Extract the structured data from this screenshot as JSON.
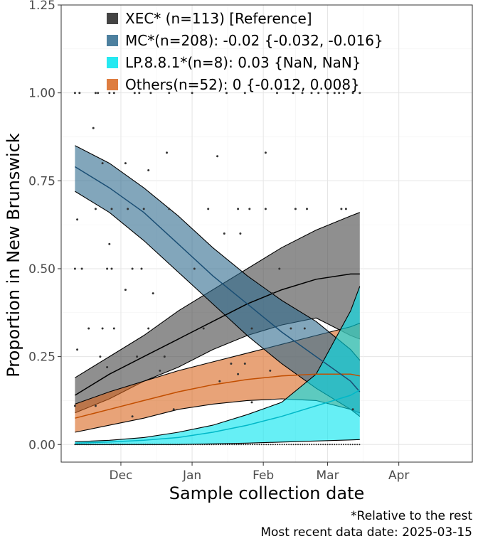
{
  "chart_data": {
    "type": "line",
    "title": "",
    "xlabel": "Sample collection date",
    "ylabel": "Proportion in New Brunswick",
    "xlim": [
      "2024-11-05",
      "2025-05-03"
    ],
    "ylim": [
      -0.05,
      1.25
    ],
    "grid": true,
    "legend_position": "top-left",
    "x_ticks": [
      {
        "date": "2024-12-01",
        "label": "Dec"
      },
      {
        "date": "2025-01-01",
        "label": "Jan"
      },
      {
        "date": "2025-02-01",
        "label": "Feb"
      },
      {
        "date": "2025-03-01",
        "label": "Mar"
      },
      {
        "date": "2025-04-01",
        "label": "Apr"
      }
    ],
    "y_ticks": [
      {
        "value": 0,
        "label": "0.00"
      },
      {
        "value": 0.25,
        "label": "0.25"
      },
      {
        "value": 0.5,
        "label": "0.50"
      },
      {
        "value": 0.75,
        "label": "0.75"
      },
      {
        "value": 1.0,
        "label": "1.00"
      },
      {
        "value": 1.25,
        "label": "1.25"
      }
    ],
    "x_dates": [
      "2024-11-11",
      "2024-11-26",
      "2024-12-11",
      "2024-12-26",
      "2025-01-10",
      "2025-01-25",
      "2025-02-09",
      "2025-02-24",
      "2025-03-11",
      "2025-03-15"
    ],
    "series": [
      {
        "name": "XEC* (n=113)  [Reference]",
        "color": "#444444",
        "line_color": "#000000",
        "fit": [
          0.14,
          0.2,
          0.25,
          0.3,
          0.35,
          0.4,
          0.44,
          0.47,
          0.485,
          0.485
        ],
        "lower": [
          0.09,
          0.13,
          0.18,
          0.22,
          0.27,
          0.31,
          0.34,
          0.36,
          0.31,
          0.3
        ],
        "upper": [
          0.19,
          0.25,
          0.31,
          0.38,
          0.44,
          0.5,
          0.56,
          0.61,
          0.65,
          0.66
        ]
      },
      {
        "name": "MC*(n=208): -0.02 {-0.032, -0.016}",
        "color": "#2e6a8e",
        "line_color": "#1a4e74",
        "fit": [
          0.79,
          0.73,
          0.66,
          0.57,
          0.48,
          0.4,
          0.32,
          0.25,
          0.18,
          0.15
        ],
        "lower": [
          0.72,
          0.66,
          0.58,
          0.49,
          0.4,
          0.31,
          0.23,
          0.16,
          0.1,
          0.08
        ],
        "upper": [
          0.85,
          0.8,
          0.73,
          0.65,
          0.56,
          0.48,
          0.41,
          0.35,
          0.27,
          0.24
        ]
      },
      {
        "name": "LP.8.8.1*(n=8): 0.03 {NaN, NaN}",
        "color": "#00e5ee",
        "line_color": "#00b8c8",
        "fit": [
          0.004,
          0.007,
          0.012,
          0.02,
          0.035,
          0.055,
          0.08,
          0.11,
          0.14,
          0.155
        ],
        "lower": [
          0.0,
          0.0,
          0.0,
          0.0,
          0.002,
          0.004,
          0.007,
          0.01,
          0.013,
          0.014
        ],
        "upper": [
          0.008,
          0.012,
          0.02,
          0.035,
          0.055,
          0.085,
          0.12,
          0.2,
          0.38,
          0.45
        ]
      },
      {
        "name": "Others(n=52): 0 {-0.012, 0.008}",
        "color": "#d8661e",
        "line_color": "#c24e00",
        "fit": [
          0.075,
          0.1,
          0.125,
          0.15,
          0.17,
          0.185,
          0.195,
          0.2,
          0.2,
          0.195
        ],
        "lower": [
          0.035,
          0.055,
          0.075,
          0.1,
          0.115,
          0.125,
          0.13,
          0.125,
          0.1,
          0.09
        ],
        "upper": [
          0.115,
          0.15,
          0.18,
          0.21,
          0.235,
          0.26,
          0.285,
          0.31,
          0.335,
          0.345
        ]
      }
    ],
    "observations": [
      {
        "x": "2024-11-11",
        "y": 1.0
      },
      {
        "x": "2024-11-13",
        "y": 1.0
      },
      {
        "x": "2024-11-20",
        "y": 1.0
      },
      {
        "x": "2024-11-21",
        "y": 1.0
      },
      {
        "x": "2024-11-26",
        "y": 1.0
      },
      {
        "x": "2024-11-28",
        "y": 1.0
      },
      {
        "x": "2024-12-07",
        "y": 1.0
      },
      {
        "x": "2024-12-09",
        "y": 1.0
      },
      {
        "x": "2024-12-14",
        "y": 1.0
      },
      {
        "x": "2024-12-22",
        "y": 1.0
      },
      {
        "x": "2025-01-01",
        "y": 1.0
      },
      {
        "x": "2025-01-16",
        "y": 1.0
      },
      {
        "x": "2025-01-24",
        "y": 1.0
      },
      {
        "x": "2025-02-07",
        "y": 1.0
      },
      {
        "x": "2025-02-14",
        "y": 1.0
      },
      {
        "x": "2025-02-18",
        "y": 1.0
      },
      {
        "x": "2025-02-22",
        "y": 1.0
      },
      {
        "x": "2025-02-25",
        "y": 1.0
      },
      {
        "x": "2025-03-01",
        "y": 1.0
      },
      {
        "x": "2025-03-04",
        "y": 1.0
      },
      {
        "x": "2025-03-06",
        "y": 1.0
      },
      {
        "x": "2025-03-08",
        "y": 1.0
      },
      {
        "x": "2025-03-12",
        "y": 1.0
      },
      {
        "x": "2025-03-15",
        "y": 1.0
      },
      {
        "x": "2024-11-19",
        "y": 0.9
      },
      {
        "x": "2024-12-21",
        "y": 0.83
      },
      {
        "x": "2025-01-12",
        "y": 0.82
      },
      {
        "x": "2025-02-02",
        "y": 0.83
      },
      {
        "x": "2024-11-23",
        "y": 0.8
      },
      {
        "x": "2024-12-03",
        "y": 0.8
      },
      {
        "x": "2024-12-13",
        "y": 0.78
      },
      {
        "x": "2024-11-12",
        "y": 0.64
      },
      {
        "x": "2024-11-20",
        "y": 0.67
      },
      {
        "x": "2024-11-27",
        "y": 0.67
      },
      {
        "x": "2024-12-04",
        "y": 0.67
      },
      {
        "x": "2024-12-11",
        "y": 0.67
      },
      {
        "x": "2024-12-22",
        "y": 0.67
      },
      {
        "x": "2025-01-08",
        "y": 0.67
      },
      {
        "x": "2025-01-21",
        "y": 0.67
      },
      {
        "x": "2025-01-26",
        "y": 0.67
      },
      {
        "x": "2025-02-02",
        "y": 0.67
      },
      {
        "x": "2025-02-15",
        "y": 0.67
      },
      {
        "x": "2025-02-20",
        "y": 0.67
      },
      {
        "x": "2025-03-07",
        "y": 0.67
      },
      {
        "x": "2025-03-09",
        "y": 0.67
      },
      {
        "x": "2024-11-26",
        "y": 0.57
      },
      {
        "x": "2025-01-15",
        "y": 0.6
      },
      {
        "x": "2025-01-22",
        "y": 0.6
      },
      {
        "x": "2024-11-11",
        "y": 0.5
      },
      {
        "x": "2024-11-14",
        "y": 0.5
      },
      {
        "x": "2024-11-25",
        "y": 0.5
      },
      {
        "x": "2024-11-27",
        "y": 0.5
      },
      {
        "x": "2024-12-06",
        "y": 0.5
      },
      {
        "x": "2024-12-10",
        "y": 0.5
      },
      {
        "x": "2025-01-02",
        "y": 0.5
      },
      {
        "x": "2025-02-08",
        "y": 0.5
      },
      {
        "x": "2024-12-03",
        "y": 0.44
      },
      {
        "x": "2024-12-15",
        "y": 0.43
      },
      {
        "x": "2025-02-05",
        "y": 0.43
      },
      {
        "x": "2024-11-17",
        "y": 0.33
      },
      {
        "x": "2024-11-23",
        "y": 0.33
      },
      {
        "x": "2024-11-28",
        "y": 0.33
      },
      {
        "x": "2024-12-13",
        "y": 0.33
      },
      {
        "x": "2025-01-06",
        "y": 0.33
      },
      {
        "x": "2025-01-27",
        "y": 0.33
      },
      {
        "x": "2025-02-13",
        "y": 0.33
      },
      {
        "x": "2025-02-19",
        "y": 0.33
      },
      {
        "x": "2024-11-12",
        "y": 0.27
      },
      {
        "x": "2024-11-22",
        "y": 0.25
      },
      {
        "x": "2024-12-08",
        "y": 0.25
      },
      {
        "x": "2024-12-20",
        "y": 0.25
      },
      {
        "x": "2025-01-21",
        "y": 0.2
      },
      {
        "x": "2025-01-13",
        "y": 0.18
      },
      {
        "x": "2024-11-25",
        "y": 0.22
      },
      {
        "x": "2024-12-18",
        "y": 0.21
      },
      {
        "x": "2025-01-18",
        "y": 0.23
      },
      {
        "x": "2025-01-24",
        "y": 0.23
      },
      {
        "x": "2025-02-04",
        "y": 0.21
      },
      {
        "x": "2024-11-11",
        "y": 0.11
      },
      {
        "x": "2024-11-20",
        "y": 0.11
      },
      {
        "x": "2024-12-24",
        "y": 0.1
      },
      {
        "x": "2025-01-27",
        "y": 0.12
      },
      {
        "x": "2025-03-12",
        "y": 0.1
      },
      {
        "x": "2024-12-06",
        "y": 0.08
      }
    ]
  },
  "caption": {
    "line1": "*Relative to the rest",
    "line2": "Most recent data date: 2025-03-15"
  }
}
